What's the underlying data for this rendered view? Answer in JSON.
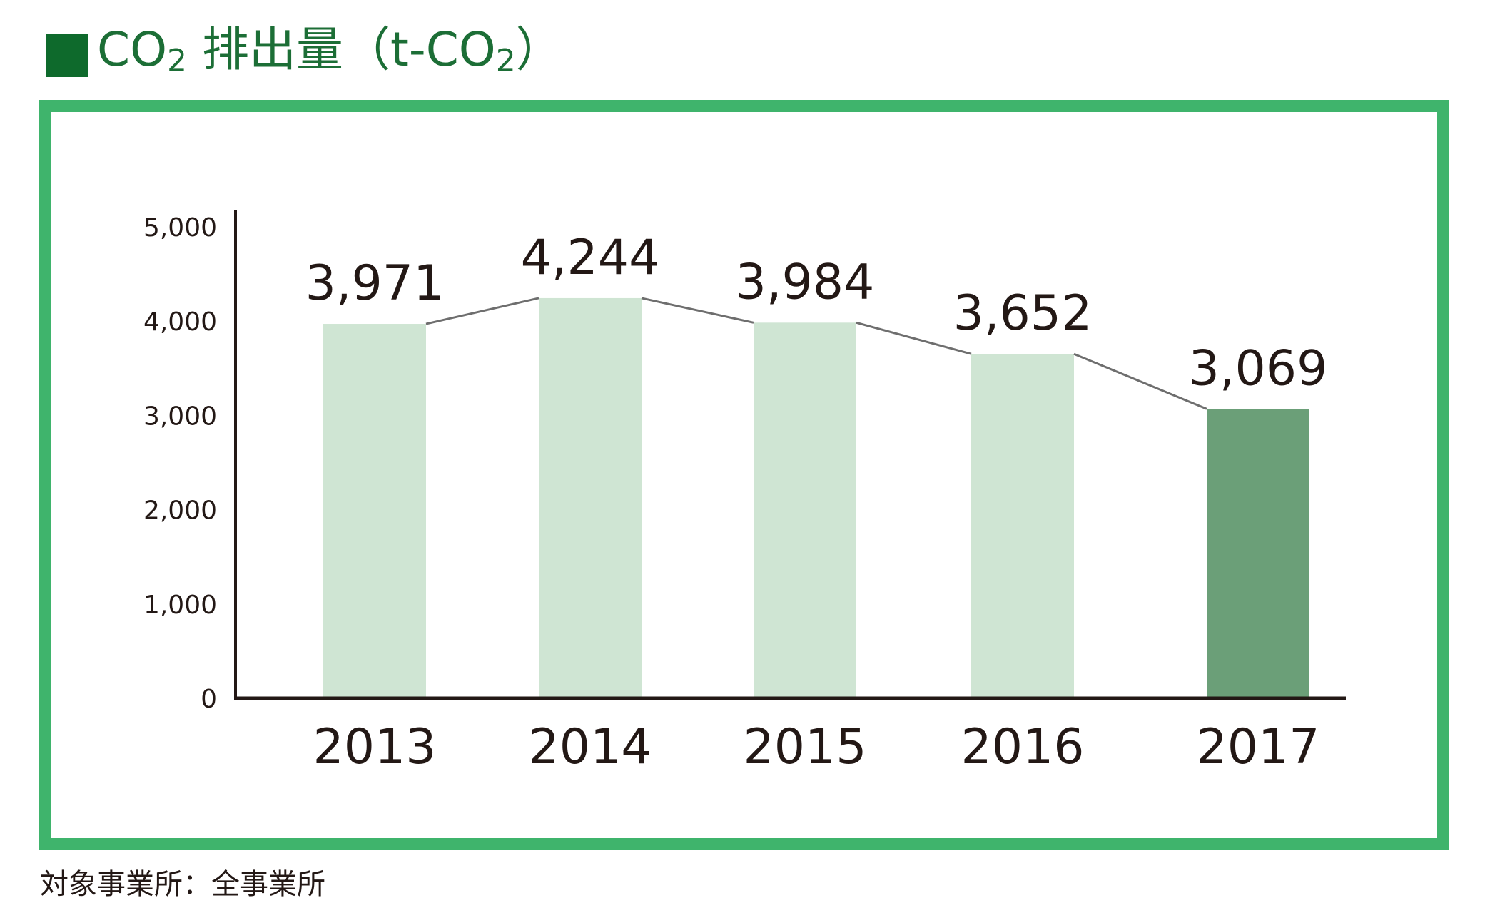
{
  "title": {
    "square_color": "#0e6a2c",
    "text_color": "#1c6e36",
    "prefix": "CO",
    "subscript1": "2",
    "main": " 排出量（t-CO",
    "subscript2": "2",
    "suffix": "）"
  },
  "frame_color": "#3fb46c",
  "chart_data": {
    "type": "bar",
    "categories": [
      "2013",
      "2014",
      "2015",
      "2016",
      "2017"
    ],
    "values": [
      3971,
      4244,
      3984,
      3652,
      3069
    ],
    "value_labels": [
      "3,971",
      "4,244",
      "3,984",
      "3,652",
      "3,069"
    ],
    "bar_colors": [
      "#cfe5d3",
      "#cfe5d3",
      "#cfe5d3",
      "#cfe5d3",
      "#6b9f78"
    ],
    "line_color": "#6e6e6e",
    "trend_line": true,
    "ylim": [
      0,
      5000
    ],
    "yticks": [
      0,
      1000,
      2000,
      3000,
      4000,
      5000
    ],
    "ytick_labels": [
      "0",
      "1,000",
      "2,000",
      "3,000",
      "4,000",
      "5,000"
    ],
    "grid": false,
    "legend": "none",
    "xlabel": "",
    "ylabel": ""
  },
  "footnote": "対象事業所：全事業所"
}
